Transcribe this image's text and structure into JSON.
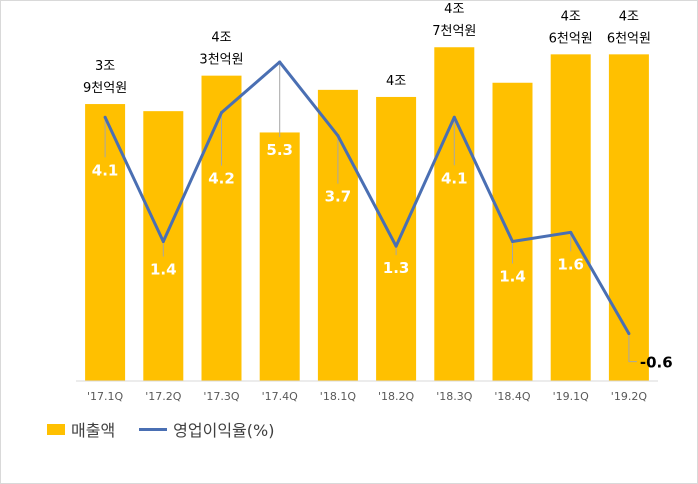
{
  "chart_data": {
    "type": "bar",
    "categories": [
      "'17.1Q",
      "'17.2Q",
      "'17.3Q",
      "'17.4Q",
      "'18.1Q",
      "'18.2Q",
      "'18.3Q",
      "'18.4Q",
      "'19.1Q",
      "'19.2Q"
    ],
    "series": [
      {
        "name": "매출액",
        "type": "bar",
        "unit": "조원",
        "values": [
          3.9,
          3.8,
          4.3,
          3.5,
          4.1,
          4.0,
          4.7,
          4.2,
          4.6,
          4.6
        ],
        "color": "#FFC000",
        "data_labels": [
          [
            "3조",
            "9천억원"
          ],
          [],
          [
            "4조",
            "3천억원"
          ],
          [],
          [],
          [
            "4조"
          ],
          [
            "4조",
            "7천억원"
          ],
          [],
          [
            "4조",
            "6천억원"
          ],
          [
            "4조",
            "6천억원"
          ]
        ]
      },
      {
        "name": "영업이익율(%)",
        "type": "line",
        "values": [
          4.1,
          1.4,
          4.2,
          5.3,
          3.7,
          1.3,
          4.1,
          1.4,
          1.6,
          -0.6
        ],
        "color": "#4a6fb3",
        "data_labels": [
          "4.1",
          "1.4",
          "4.2",
          "5.3",
          "3.7",
          "1.3",
          "4.1",
          "1.4",
          "1.6",
          "-0.6"
        ]
      }
    ],
    "bar_ylim": [
      0,
      5.14
    ],
    "line_ylim": [
      -1.63,
      6.3
    ],
    "title": "",
    "xlabel": "",
    "ylabel": "",
    "grid": false,
    "legend_position": "bottom-left"
  },
  "legend": {
    "bar": "매출액",
    "line": "영업이익율(%)"
  }
}
